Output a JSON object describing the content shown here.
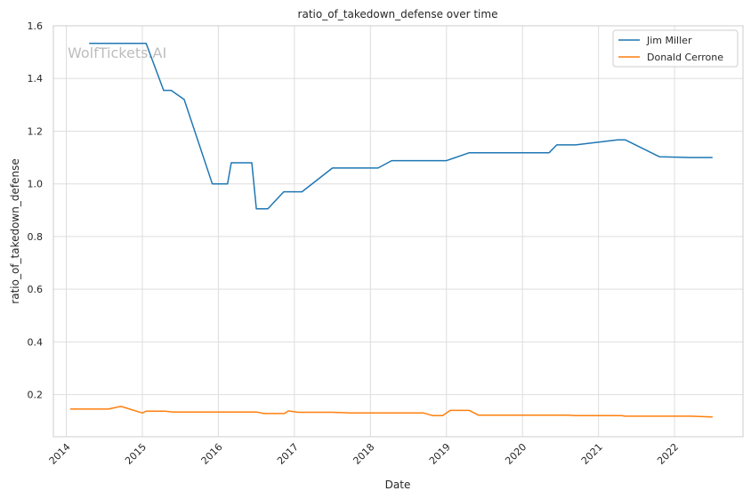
{
  "chart_data": {
    "type": "line",
    "title": "ratio_of_takedown_defense over time",
    "xlabel": "Date",
    "ylabel": "ratio_of_takedown_defense",
    "watermark": "WolfTickets.AI",
    "grid": true,
    "legend_position": "top-right",
    "xlim": [
      2013.83,
      2022.9
    ],
    "ylim": [
      0.04,
      1.6
    ],
    "x_ticks": [
      2014,
      2015,
      2016,
      2017,
      2018,
      2019,
      2020,
      2021,
      2022
    ],
    "x_tick_labels": [
      "2014",
      "2015",
      "2016",
      "2017",
      "2018",
      "2019",
      "2020",
      "2021",
      "2022"
    ],
    "y_ticks": [
      0.2,
      0.4,
      0.6,
      0.8,
      1.0,
      1.2,
      1.4,
      1.6
    ],
    "y_tick_labels": [
      "0.2",
      "0.4",
      "0.6",
      "0.8",
      "1.0",
      "1.2",
      "1.4",
      "1.6"
    ],
    "series": [
      {
        "name": "Jim Miller",
        "color": "#1f77b4",
        "x": [
          2014.3,
          2015.05,
          2015.28,
          2015.38,
          2015.55,
          2015.92,
          2016.12,
          2016.17,
          2016.44,
          2016.5,
          2016.65,
          2016.86,
          2017.1,
          2017.5,
          2017.8,
          2018.1,
          2018.28,
          2019.0,
          2019.3,
          2020.35,
          2020.45,
          2020.7,
          2021.25,
          2021.35,
          2021.8,
          2022.2,
          2022.5
        ],
        "values": [
          1.533,
          1.533,
          1.355,
          1.355,
          1.32,
          1.0,
          1.0,
          1.08,
          1.08,
          0.905,
          0.905,
          0.97,
          0.97,
          1.06,
          1.06,
          1.06,
          1.088,
          1.088,
          1.118,
          1.118,
          1.148,
          1.148,
          1.167,
          1.167,
          1.103,
          1.1,
          1.1
        ]
      },
      {
        "name": "Donald Cerrone",
        "color": "#ff7f0e",
        "x": [
          2014.05,
          2014.55,
          2014.72,
          2015.0,
          2015.05,
          2015.3,
          2015.4,
          2016.5,
          2016.6,
          2016.87,
          2016.92,
          2017.05,
          2017.5,
          2017.75,
          2018.7,
          2018.82,
          2018.95,
          2019.05,
          2019.3,
          2019.42,
          2020.6,
          2020.7,
          2021.3,
          2021.35,
          2022.2,
          2022.5
        ],
        "values": [
          0.145,
          0.145,
          0.155,
          0.13,
          0.137,
          0.137,
          0.134,
          0.134,
          0.128,
          0.128,
          0.138,
          0.133,
          0.133,
          0.13,
          0.13,
          0.12,
          0.12,
          0.14,
          0.14,
          0.122,
          0.122,
          0.12,
          0.12,
          0.118,
          0.118,
          0.115
        ]
      }
    ]
  }
}
